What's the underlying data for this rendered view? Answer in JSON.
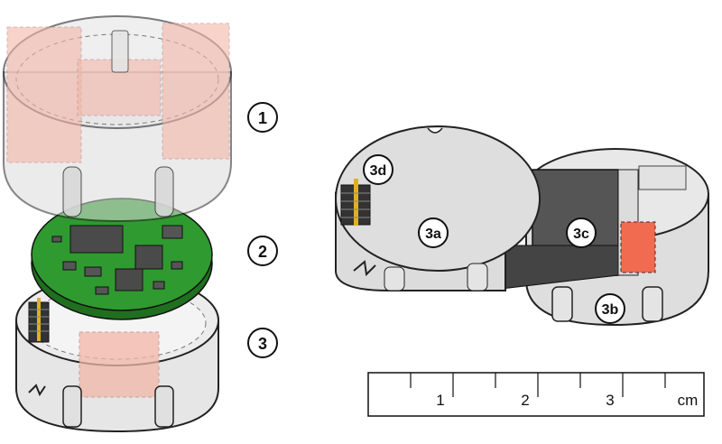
{
  "callouts": {
    "n1": "1",
    "n2": "2",
    "n3": "3",
    "n3a": "3a",
    "n3b": "3b",
    "n3c": "3c",
    "n3d": "3d"
  },
  "scale_bar": {
    "tick_labels": [
      "1",
      "2",
      "3"
    ],
    "unit": "cm"
  },
  "colors": {
    "pcb_green": "#2f9a2f",
    "chip_dark": "#4a4a4a",
    "battery_gray": "#555555",
    "battery_red": "#f06b50",
    "window_pink": "#f3b6a8",
    "housing_gray": "#d9d9d9",
    "connector_gold": "#e0b020"
  }
}
